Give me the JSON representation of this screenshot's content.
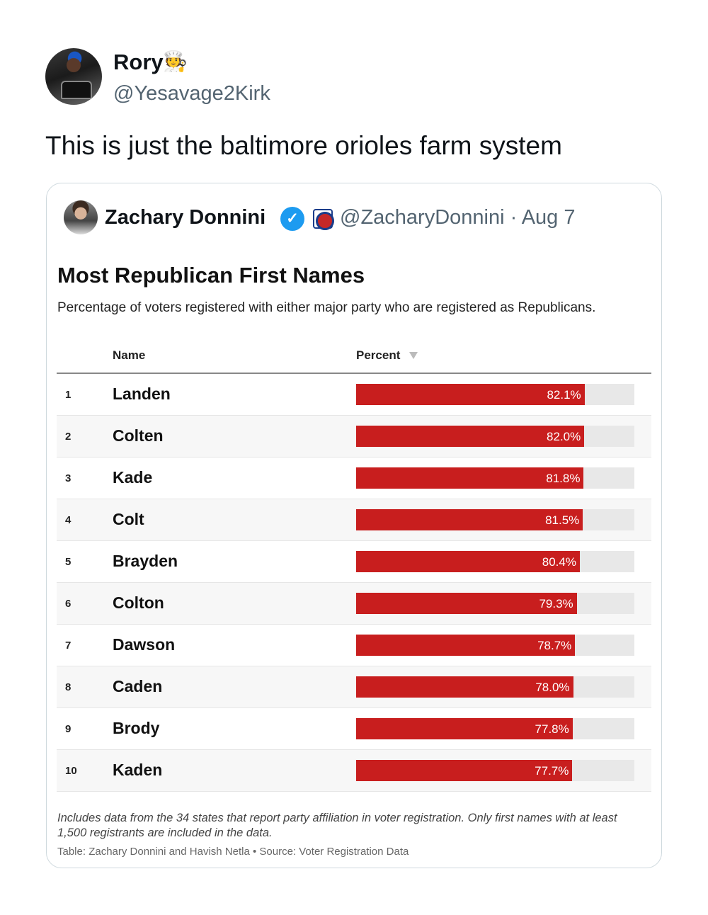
{
  "post": {
    "author_name": "Rory",
    "author_emoji": "🧑‍🍳",
    "author_handle": "@Yesavage2Kirk",
    "text": "This is just the baltimore orioles farm system"
  },
  "quote": {
    "author_name": "Zachary Donnini",
    "verified_icon": "verified-badge-icon",
    "affiliation_icon": "party-affiliation-icon",
    "handle_and_date": "@ZacharyDonnini · Aug 7",
    "table": {
      "title": "Most Republican First Names",
      "subtitle": "Percentage of voters registered with either major party who are registered as Republicans.",
      "column_name": "Name",
      "column_percent": "Percent",
      "sort_icon": "sort-descending-icon",
      "bar_color": "#c81e1e",
      "rows": [
        {
          "rank": "1",
          "name": "Landen",
          "label": "82.1%"
        },
        {
          "rank": "2",
          "name": "Colten",
          "label": "82.0%"
        },
        {
          "rank": "3",
          "name": "Kade",
          "label": "81.8%"
        },
        {
          "rank": "4",
          "name": "Colt",
          "label": "81.5%"
        },
        {
          "rank": "5",
          "name": "Brayden",
          "label": "80.4%"
        },
        {
          "rank": "6",
          "name": "Colton",
          "label": "79.3%"
        },
        {
          "rank": "7",
          "name": "Dawson",
          "label": "78.7%"
        },
        {
          "rank": "8",
          "name": "Caden",
          "label": "78.0%"
        },
        {
          "rank": "9",
          "name": "Brody",
          "label": "77.8%"
        },
        {
          "rank": "10",
          "name": "Kaden",
          "label": "77.7%"
        }
      ],
      "footnote": "Includes data from the 34 states that report party affiliation in voter registration. Only first names with at least 1,500 registrants are included in the data.",
      "credit": "Table: Zachary Donnini and Havish Netla • Source: Voter Registration Data"
    }
  },
  "chart_data": {
    "type": "table",
    "title": "Most Republican First Names",
    "subtitle": "Percentage of voters registered with either major party who are registered as Republicans.",
    "columns": [
      "Name",
      "Percent"
    ],
    "categories": [
      "Landen",
      "Colten",
      "Kade",
      "Colt",
      "Brayden",
      "Colton",
      "Dawson",
      "Caden",
      "Brody",
      "Kaden"
    ],
    "values": [
      82.1,
      82.0,
      81.8,
      81.5,
      80.4,
      79.3,
      78.7,
      78.0,
      77.8,
      77.7
    ],
    "bar_scale_max": 100
  }
}
